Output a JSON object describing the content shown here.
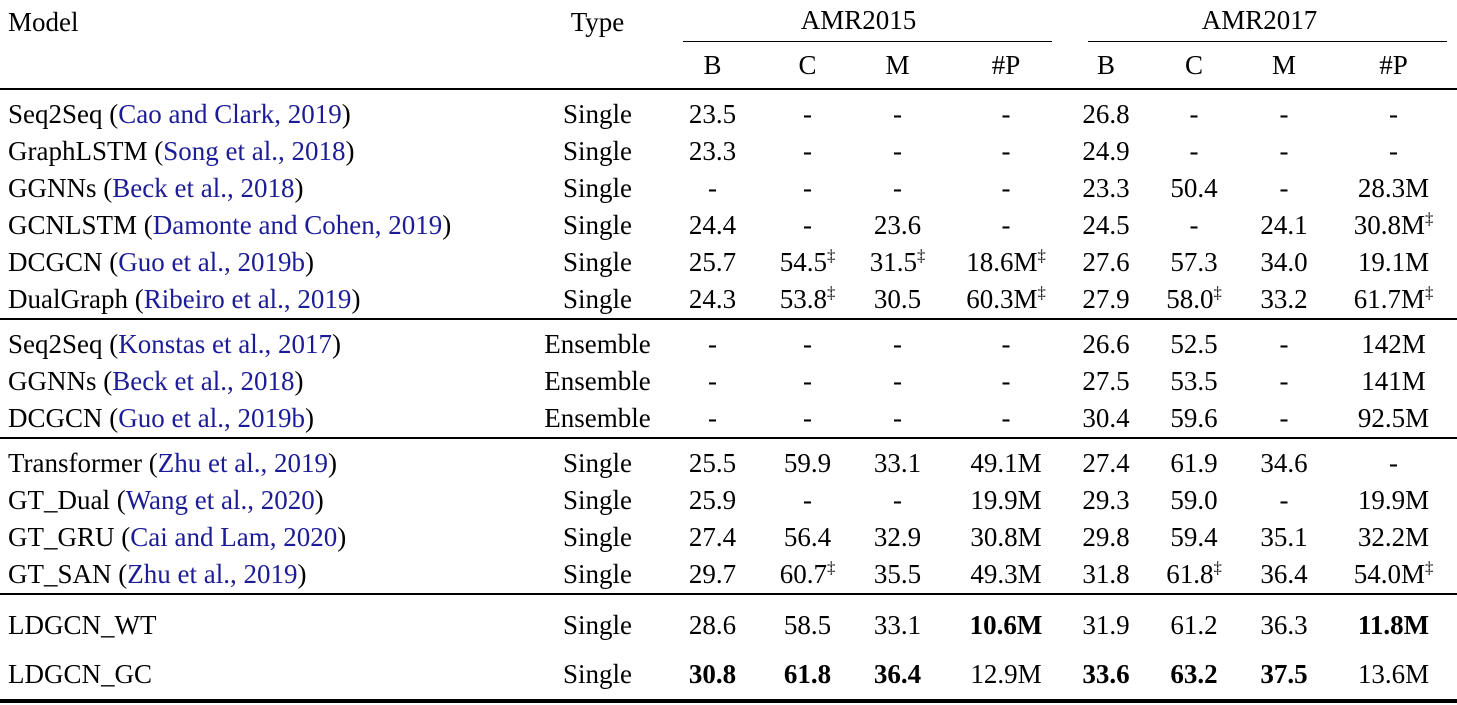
{
  "colors": {
    "citation": "#1c1c96",
    "text": "#000000",
    "rule": "#000000"
  },
  "table": {
    "header": {
      "model_label": "Model",
      "type_label": "Type",
      "groups": [
        {
          "label": "AMR2015",
          "columns": [
            "B",
            "C",
            "M",
            "#P"
          ]
        },
        {
          "label": "AMR2017",
          "columns": [
            "B",
            "C",
            "M",
            "#P"
          ]
        }
      ]
    },
    "sections": [
      {
        "rows": [
          {
            "model": "Seq2Seq",
            "citation": "Cao and Clark, 2019",
            "type": "Single",
            "values": [
              "23.5",
              "-",
              "-",
              "-",
              "26.8",
              "-",
              "-",
              "-"
            ]
          },
          {
            "model": "GraphLSTM",
            "citation": "Song et al., 2018",
            "type": "Single",
            "values": [
              "23.3",
              "-",
              "-",
              "-",
              "24.9",
              "-",
              "-",
              "-"
            ]
          },
          {
            "model": "GGNNs",
            "citation": "Beck et al., 2018",
            "type": "Single",
            "values": [
              "-",
              "-",
              "-",
              "-",
              "23.3",
              "50.4",
              "-",
              "28.3M"
            ]
          },
          {
            "model": "GCNLSTM",
            "citation": "Damonte and Cohen, 2019",
            "type": "Single",
            "values": [
              "24.4",
              "-",
              "23.6",
              "-",
              "24.5",
              "-",
              "24.1",
              "30.8M‡"
            ]
          },
          {
            "model": "DCGCN",
            "citation": "Guo et al., 2019b",
            "type": "Single",
            "values": [
              "25.7",
              "54.5‡",
              "31.5‡",
              "18.6M‡",
              "27.6",
              "57.3",
              "34.0",
              "19.1M"
            ]
          },
          {
            "model": "DualGraph",
            "citation": "Ribeiro et al., 2019",
            "type": "Single",
            "values": [
              "24.3",
              "53.8‡",
              "30.5",
              "60.3M‡",
              "27.9",
              "58.0‡",
              "33.2",
              "61.7M‡"
            ]
          }
        ]
      },
      {
        "rows": [
          {
            "model": "Seq2Seq",
            "citation": "Konstas et al., 2017",
            "type": "Ensemble",
            "values": [
              "-",
              "-",
              "-",
              "-",
              "26.6",
              "52.5",
              "-",
              "142M"
            ]
          },
          {
            "model": "GGNNs",
            "citation": "Beck et al., 2018",
            "type": "Ensemble",
            "values": [
              "-",
              "-",
              "-",
              "-",
              "27.5",
              "53.5",
              "-",
              "141M"
            ]
          },
          {
            "model": "DCGCN",
            "citation": "Guo et al., 2019b",
            "type": "Ensemble",
            "values": [
              "-",
              "-",
              "-",
              "-",
              "30.4",
              "59.6",
              "-",
              "92.5M"
            ]
          }
        ]
      },
      {
        "rows": [
          {
            "model": "Transformer",
            "citation": "Zhu et al., 2019",
            "type": "Single",
            "values": [
              "25.5",
              "59.9",
              "33.1",
              "49.1M",
              "27.4",
              "61.9",
              "34.6",
              "-"
            ]
          },
          {
            "model": "GT_Dual",
            "citation": "Wang et al., 2020",
            "type": "Single",
            "values": [
              "25.9",
              "-",
              "-",
              "19.9M",
              "29.3",
              "59.0",
              "-",
              "19.9M"
            ]
          },
          {
            "model": "GT_GRU",
            "citation": "Cai and Lam, 2020",
            "type": "Single",
            "values": [
              "27.4",
              "56.4",
              "32.9",
              "30.8M",
              "29.8",
              "59.4",
              "35.1",
              "32.2M"
            ]
          },
          {
            "model": "GT_SAN",
            "citation": "Zhu et al., 2019",
            "type": "Single",
            "values": [
              "29.7",
              "60.7‡",
              "35.5",
              "49.3M",
              "31.8",
              "61.8‡",
              "36.4",
              "54.0M‡"
            ]
          }
        ]
      },
      {
        "rows": [
          {
            "model": "LDGCN_WT",
            "citation": null,
            "type": "Single",
            "values": [
              "28.6",
              "58.5",
              "33.1",
              {
                "v": "10.6M",
                "bold": true
              },
              "31.9",
              "61.2",
              "36.3",
              {
                "v": "11.8M",
                "bold": true
              }
            ]
          },
          {
            "model": "LDGCN_GC",
            "citation": null,
            "type": "Single",
            "values": [
              {
                "v": "30.8",
                "bold": true
              },
              {
                "v": "61.8",
                "bold": true
              },
              {
                "v": "36.4",
                "bold": true
              },
              "12.9M",
              {
                "v": "33.6",
                "bold": true
              },
              {
                "v": "63.2",
                "bold": true
              },
              {
                "v": "37.5",
                "bold": true
              },
              "13.6M"
            ]
          }
        ]
      }
    ]
  }
}
